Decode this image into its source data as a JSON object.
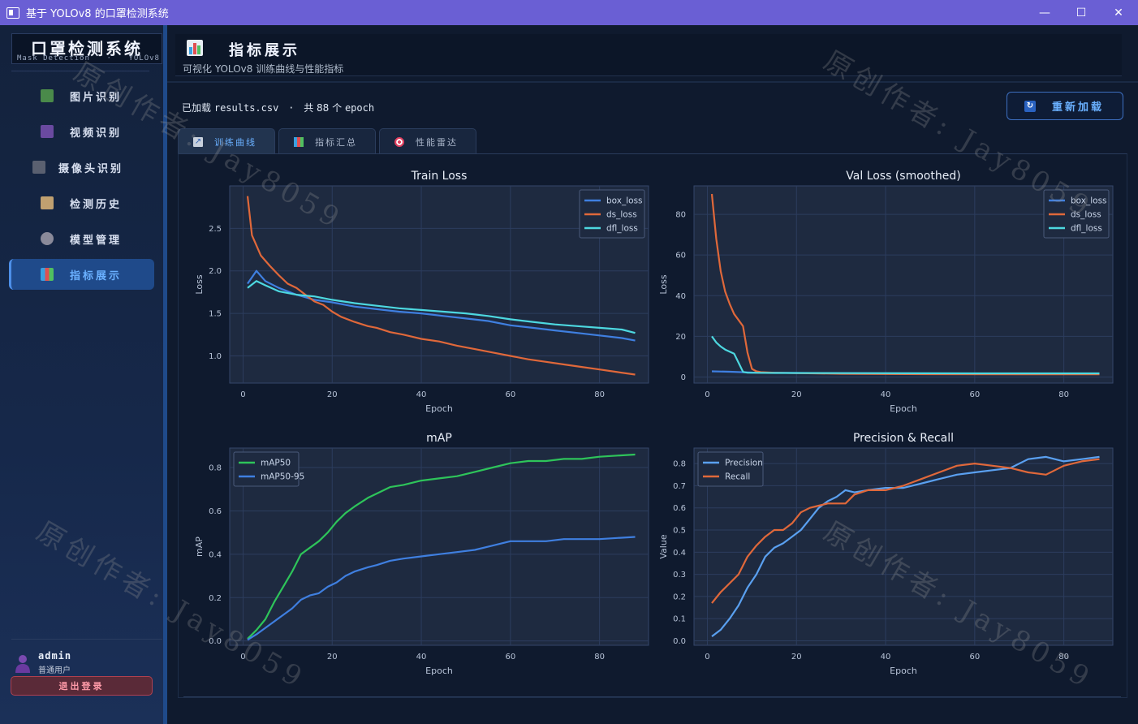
{
  "window": {
    "title": "基于 YOLOv8 的口罩检测系统",
    "minimize_glyph": "—",
    "maximize_glyph": "☐",
    "close_glyph": "✕"
  },
  "sidebar": {
    "logo_title": "口罩检测系统",
    "logo_sub_left": "Mask Detection",
    "logo_sub_sep": "·",
    "logo_sub_right": "YOLOv8",
    "items": [
      {
        "label": "图片识别",
        "icon": "image-icon",
        "glyph": "🖼"
      },
      {
        "label": "视频识别",
        "icon": "video-icon",
        "glyph": "🎬"
      },
      {
        "label": "摄像头识别",
        "icon": "camera-icon",
        "glyph": "📷"
      },
      {
        "label": "检测历史",
        "icon": "history-icon",
        "glyph": "📋"
      },
      {
        "label": "模型管理",
        "icon": "gear-icon",
        "glyph": "⚙"
      },
      {
        "label": "指标展示",
        "icon": "chart-icon",
        "glyph": "📊"
      }
    ],
    "active_index": 5,
    "user": {
      "name": "admin",
      "role": "普通用户"
    },
    "logout_label": "退出登录"
  },
  "header": {
    "title": "指标展示",
    "subtitle": "可视化 YOLOv8 训练曲线与性能指标"
  },
  "status": {
    "loaded_prefix": "已加载",
    "file": "results.csv",
    "sep": "·",
    "count_text": "共 88 个",
    "unit": "epoch"
  },
  "reload_label": "重新加载",
  "tabs": [
    {
      "label": "训练曲线",
      "icon": "line-chart-icon",
      "active": true
    },
    {
      "label": "指标汇总",
      "icon": "bar-chart-icon",
      "active": false
    },
    {
      "label": "性能雷达",
      "icon": "target-icon",
      "active": false
    }
  ],
  "watermark": "原创作者: Jay8059",
  "colors": {
    "blue": "#3f7fe0",
    "orange": "#e0683a",
    "cyan": "#4dd8e0",
    "green": "#2ec45a",
    "light_blue": "#5aa0f0"
  },
  "chart_data": [
    {
      "type": "line",
      "title": "Train Loss",
      "xlabel": "Epoch",
      "ylabel": "Loss",
      "xlim": [
        -3,
        91
      ],
      "ylim": [
        0.68,
        3.0
      ],
      "xticks": [
        0,
        20,
        40,
        60,
        80
      ],
      "yticks": [
        1.0,
        1.5,
        2.0,
        2.5
      ],
      "legend": "top-right",
      "grid": true,
      "series": [
        {
          "name": "box_loss",
          "color": "#3f7fe0",
          "x": [
            1,
            3,
            5,
            8,
            12,
            16,
            20,
            25,
            30,
            35,
            40,
            45,
            50,
            55,
            60,
            65,
            70,
            75,
            80,
            85,
            88
          ],
          "y": [
            1.85,
            2.0,
            1.88,
            1.8,
            1.72,
            1.66,
            1.63,
            1.58,
            1.55,
            1.52,
            1.5,
            1.47,
            1.44,
            1.41,
            1.36,
            1.33,
            1.3,
            1.27,
            1.24,
            1.21,
            1.18
          ]
        },
        {
          "name": "ds_loss",
          "color": "#e0683a",
          "x": [
            1,
            2,
            4,
            6,
            8,
            10,
            12,
            14,
            16,
            18,
            20,
            22,
            25,
            28,
            30,
            33,
            36,
            40,
            44,
            48,
            52,
            56,
            60,
            64,
            68,
            72,
            76,
            80,
            84,
            88
          ],
          "y": [
            2.88,
            2.42,
            2.18,
            2.06,
            1.95,
            1.85,
            1.8,
            1.72,
            1.64,
            1.6,
            1.52,
            1.46,
            1.4,
            1.35,
            1.33,
            1.28,
            1.25,
            1.2,
            1.17,
            1.12,
            1.08,
            1.04,
            1.0,
            0.96,
            0.93,
            0.9,
            0.87,
            0.84,
            0.81,
            0.78
          ]
        },
        {
          "name": "dfl_loss",
          "color": "#4dd8e0",
          "x": [
            1,
            3,
            5,
            8,
            12,
            16,
            20,
            25,
            30,
            35,
            40,
            45,
            50,
            55,
            60,
            65,
            70,
            75,
            80,
            85,
            88
          ],
          "y": [
            1.8,
            1.88,
            1.83,
            1.76,
            1.72,
            1.7,
            1.66,
            1.62,
            1.59,
            1.56,
            1.54,
            1.52,
            1.5,
            1.47,
            1.43,
            1.4,
            1.37,
            1.35,
            1.33,
            1.31,
            1.27
          ]
        }
      ]
    },
    {
      "type": "line",
      "title": "Val Loss (smoothed)",
      "xlabel": "Epoch",
      "ylabel": "Loss",
      "xlim": [
        -3,
        91
      ],
      "ylim": [
        -3,
        94
      ],
      "xticks": [
        0,
        20,
        40,
        60,
        80
      ],
      "yticks": [
        0,
        20,
        40,
        60,
        80
      ],
      "legend": "top-right",
      "grid": true,
      "series": [
        {
          "name": "box_loss",
          "color": "#3f7fe0",
          "x": [
            1,
            5,
            10,
            20,
            40,
            60,
            88
          ],
          "y": [
            2.8,
            2.6,
            2.2,
            2.0,
            1.8,
            1.7,
            1.6
          ]
        },
        {
          "name": "ds_loss",
          "color": "#e0683a",
          "x": [
            1,
            2,
            3,
            4,
            5,
            6,
            7,
            8,
            9,
            10,
            11,
            12,
            15,
            20,
            30,
            50,
            70,
            88
          ],
          "y": [
            90,
            68,
            52,
            42,
            36,
            31,
            28,
            25,
            12,
            4,
            2.8,
            2.4,
            2.1,
            1.9,
            1.6,
            1.4,
            1.3,
            1.3
          ]
        },
        {
          "name": "dfl_loss",
          "color": "#4dd8e0",
          "x": [
            1,
            2,
            3,
            4,
            5,
            6,
            7,
            8,
            9,
            15,
            30,
            60,
            88
          ],
          "y": [
            20,
            17,
            15,
            13.5,
            12.5,
            11.5,
            7,
            2.5,
            2.1,
            2.0,
            1.9,
            1.8,
            1.8
          ]
        }
      ]
    },
    {
      "type": "line",
      "title": "mAP",
      "xlabel": "Epoch",
      "ylabel": "mAP",
      "xlim": [
        -3,
        91
      ],
      "ylim": [
        -0.02,
        0.89
      ],
      "xticks": [
        0,
        20,
        40,
        60,
        80
      ],
      "yticks": [
        0.0,
        0.2,
        0.4,
        0.6,
        0.8
      ],
      "legend": "top-left",
      "grid": true,
      "series": [
        {
          "name": "mAP50",
          "color": "#2ec45a",
          "x": [
            1,
            3,
            5,
            7,
            9,
            11,
            13,
            15,
            17,
            19,
            21,
            23,
            25,
            28,
            30,
            33,
            36,
            40,
            44,
            48,
            52,
            56,
            60,
            64,
            68,
            72,
            76,
            80,
            84,
            88
          ],
          "y": [
            0.01,
            0.05,
            0.1,
            0.18,
            0.25,
            0.32,
            0.4,
            0.43,
            0.46,
            0.5,
            0.55,
            0.59,
            0.62,
            0.66,
            0.68,
            0.71,
            0.72,
            0.74,
            0.75,
            0.76,
            0.78,
            0.8,
            0.82,
            0.83,
            0.83,
            0.84,
            0.84,
            0.85,
            0.855,
            0.86
          ]
        },
        {
          "name": "mAP50-95",
          "color": "#3f7fe0",
          "x": [
            1,
            3,
            5,
            7,
            9,
            11,
            13,
            15,
            17,
            19,
            21,
            23,
            25,
            28,
            30,
            33,
            36,
            40,
            44,
            48,
            52,
            56,
            60,
            64,
            68,
            72,
            76,
            80,
            84,
            88
          ],
          "y": [
            0.005,
            0.03,
            0.06,
            0.09,
            0.12,
            0.15,
            0.19,
            0.21,
            0.22,
            0.25,
            0.27,
            0.3,
            0.32,
            0.34,
            0.35,
            0.37,
            0.38,
            0.39,
            0.4,
            0.41,
            0.42,
            0.44,
            0.46,
            0.46,
            0.46,
            0.47,
            0.47,
            0.47,
            0.475,
            0.48
          ]
        }
      ]
    },
    {
      "type": "line",
      "title": "Precision & Recall",
      "xlabel": "Epoch",
      "ylabel": "Value",
      "xlim": [
        -3,
        91
      ],
      "ylim": [
        -0.02,
        0.87
      ],
      "xticks": [
        0,
        20,
        40,
        60,
        80
      ],
      "yticks": [
        0.0,
        0.1,
        0.2,
        0.3,
        0.4,
        0.5,
        0.6,
        0.7,
        0.8
      ],
      "legend": "top-left",
      "grid": true,
      "series": [
        {
          "name": "Precision",
          "color": "#5aa0f0",
          "x": [
            1,
            3,
            5,
            7,
            9,
            11,
            13,
            15,
            17,
            19,
            21,
            23,
            25,
            27,
            29,
            31,
            33,
            36,
            40,
            44,
            48,
            52,
            56,
            60,
            64,
            68,
            72,
            76,
            80,
            84,
            88
          ],
          "y": [
            0.02,
            0.05,
            0.1,
            0.16,
            0.24,
            0.3,
            0.38,
            0.42,
            0.44,
            0.47,
            0.5,
            0.55,
            0.6,
            0.63,
            0.65,
            0.68,
            0.67,
            0.68,
            0.69,
            0.69,
            0.71,
            0.73,
            0.75,
            0.76,
            0.77,
            0.78,
            0.82,
            0.83,
            0.81,
            0.82,
            0.83
          ]
        },
        {
          "name": "Recall",
          "color": "#e0683a",
          "x": [
            1,
            3,
            5,
            7,
            9,
            11,
            13,
            15,
            17,
            19,
            21,
            23,
            25,
            27,
            29,
            31,
            33,
            36,
            40,
            44,
            48,
            52,
            56,
            60,
            64,
            68,
            72,
            76,
            80,
            84,
            88
          ],
          "y": [
            0.17,
            0.22,
            0.26,
            0.3,
            0.38,
            0.43,
            0.47,
            0.5,
            0.5,
            0.53,
            0.58,
            0.6,
            0.61,
            0.62,
            0.62,
            0.62,
            0.66,
            0.68,
            0.68,
            0.7,
            0.73,
            0.76,
            0.79,
            0.8,
            0.79,
            0.78,
            0.76,
            0.75,
            0.79,
            0.81,
            0.82
          ]
        }
      ]
    }
  ]
}
